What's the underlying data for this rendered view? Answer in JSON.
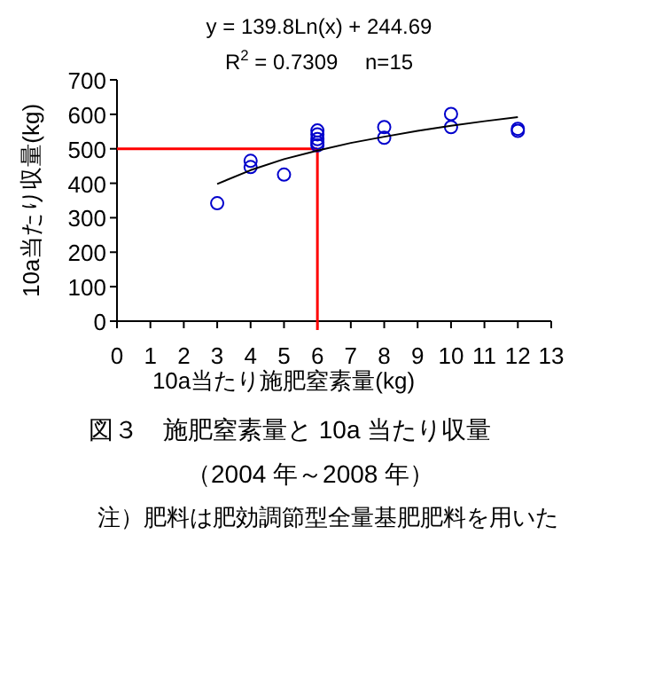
{
  "chart_data": {
    "type": "scatter",
    "xlabel": "10a当たり施肥窒素量(kg)",
    "ylabel": "10a当たり収量(kg)",
    "annotations": [
      "y = 139.8Ln(x) + 244.69",
      "R$^{2}$ = 0.7309　 n=15",
      "図３　施肥窒素量と 10a 当たり収量",
      "（2004 年～2008 年）",
      "注）肥料は肥効調節型全量基肥肥料を用いた"
    ],
    "series": [
      {
        "color": "#0000cc",
        "marker": "circle",
        "x": [
          3,
          4,
          4,
          5,
          6,
          6,
          6,
          6,
          6,
          8,
          8,
          10,
          10,
          12,
          12
        ],
        "values": [
          342,
          465,
          447,
          425,
          553,
          542,
          528,
          518,
          510,
          563,
          532,
          601,
          563,
          558,
          552
        ]
      },
      {
        "type": "line",
        "color": "#000000",
        "x": [
          3,
          4,
          5,
          6,
          7,
          8,
          9,
          10,
          11,
          12
        ],
        "values": [
          398,
          438,
          470,
          495,
          517,
          535,
          552,
          567,
          580,
          592
        ]
      }
    ],
    "ref_lines": [
      {
        "axis": "y",
        "value": 500,
        "color": "#ff0000"
      },
      {
        "axis": "x",
        "value": 6,
        "color": "#ff0000"
      }
    ],
    "xlim": [
      0,
      13
    ],
    "xticks": [
      0,
      1,
      2,
      3,
      4,
      5,
      6,
      7,
      8,
      9,
      10,
      11,
      12,
      13
    ],
    "ylim": [
      0,
      700
    ],
    "yticks": [
      0,
      100,
      200,
      300,
      400,
      500,
      600,
      700
    ],
    "grid": false
  }
}
